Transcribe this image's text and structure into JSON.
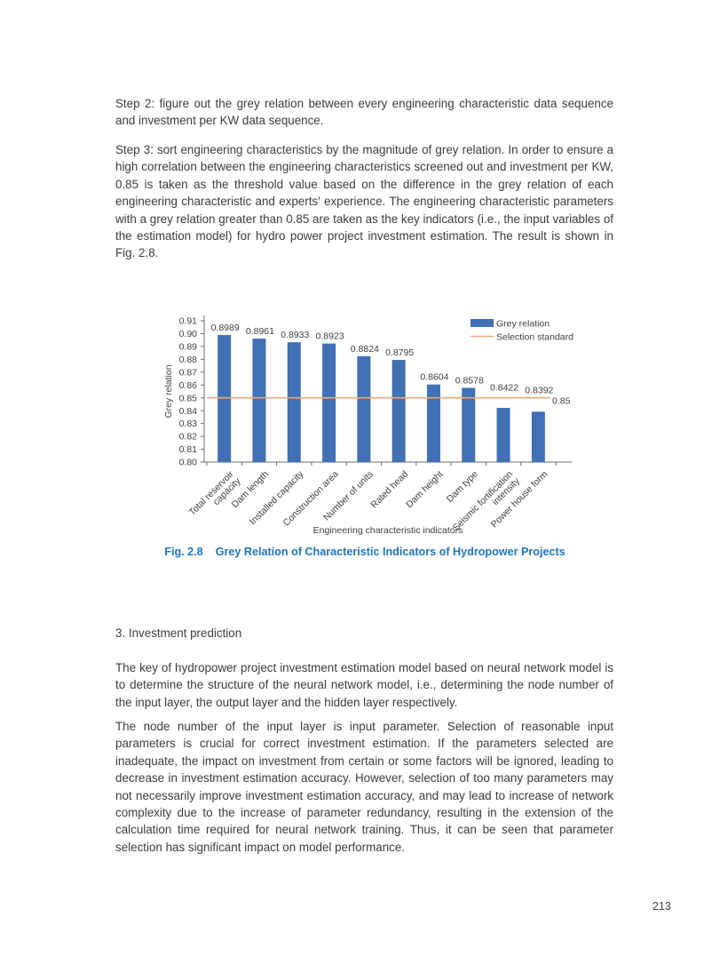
{
  "document": {
    "page_number": "213",
    "paragraphs": {
      "step2": "Step 2: figure out the grey relation between every engineering characteristic data sequence and investment per KW data sequence.",
      "step3": "Step 3: sort engineering characteristics by the magnitude of grey relation. In order to ensure a high correlation between the engineering characteristics screened out and investment per KW, 0.85 is taken as the threshold value based on the difference in the grey relation of each engineering characteristic and experts' experience. The engineering characteristic parameters with a grey relation greater than 0.85 are taken as the key indicators (i.e., the input variables of the estimation model) for hydro power project investment estimation. The result is shown in Fig. 2.8.",
      "section3_heading": "3. Investment prediction",
      "investment1": "The key of hydropower project investment estimation model based on neural network model is to determine the structure of the neural network model, i.e., determining the node number of the input layer, the output layer and the hidden layer respectively.",
      "investment2": "The node number of the input layer is input parameter. Selection of reasonable input parameters is crucial for correct investment estimation. If the parameters selected are inadequate, the impact on investment from certain or some factors will be ignored, leading to decrease in investment estimation accuracy. However, selection of too many parameters may not necessarily improve investment estimation accuracy, and may lead to increase of network complexity due to the increase of parameter redundancy, resulting in the extension of the calculation time required for neural network training. Thus, it can be seen that parameter selection has significant impact on model performance."
    }
  },
  "figure": {
    "caption_label": "Fig. 2.8",
    "caption_title": "Grey Relation of Characteristic Indicators of Hydropower Projects",
    "caption_color": "#2076BC"
  },
  "chart_data": {
    "type": "bar",
    "title": "",
    "categories": [
      "Total reservoir capacity",
      "Dam length",
      "Installed capacity",
      "Construction area",
      "Number of units",
      "Rated head",
      "Dam height",
      "Dam type",
      "Seismic fortification intensity",
      "Power house form"
    ],
    "category_lines": [
      [
        "Total reservoir",
        "capacity"
      ],
      [
        "Dam length"
      ],
      [
        "Installed capacity"
      ],
      [
        "Construction area"
      ],
      [
        "Number of units"
      ],
      [
        "Rated head"
      ],
      [
        "Dam height"
      ],
      [
        "Dam type"
      ],
      [
        "Seismic fortification",
        "intensity"
      ],
      [
        "Power house form"
      ]
    ],
    "values": [
      0.8989,
      0.8961,
      0.8933,
      0.8923,
      0.8824,
      0.8795,
      0.8604,
      0.8578,
      0.8422,
      0.8392
    ],
    "value_labels": [
      "0.8989",
      "0.8961",
      "0.8933",
      "0.8923",
      "0.8824",
      "0.8795",
      "0.8604",
      "0.8578",
      "0.8422",
      "0.8392"
    ],
    "series_name": "Grey relation",
    "threshold": {
      "value": 0.85,
      "label": "0.85",
      "name": "Selection standard"
    },
    "ylabel": "Grey relation",
    "xlabel": "Engineering characteristic indicators",
    "ylim": [
      0.8,
      0.91
    ],
    "ytick_step": 0.01,
    "bar_color": "#4170B4",
    "threshold_color": "#E9A97D",
    "axis_color": "#6e6e6e",
    "axis_text_color": "#404040",
    "legend_position": "top-right",
    "grid": false
  }
}
